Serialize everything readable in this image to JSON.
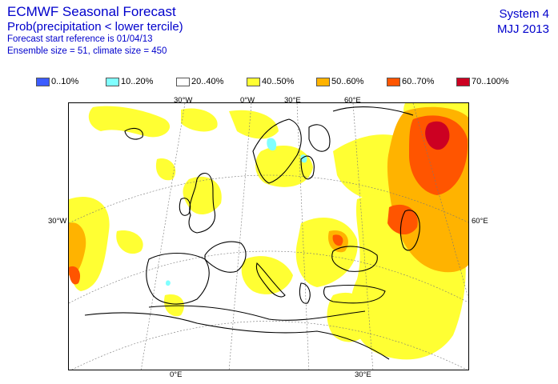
{
  "header": {
    "title": "ECMWF Seasonal Forecast",
    "subtitle": "Prob(precipitation < lower tercile)",
    "start_ref": "Forecast start reference is 01/04/13",
    "ensemble": "Ensemble size = 51, climate size = 450",
    "system": "System 4",
    "season": "MJJ 2013"
  },
  "legend": [
    {
      "label": "0..10%",
      "color": "#3c5cff"
    },
    {
      "label": "10..20%",
      "color": "#80ffff"
    },
    {
      "label": "20..40%",
      "color": "#ffffff"
    },
    {
      "label": "40..50%",
      "color": "#ffff33"
    },
    {
      "label": "50..60%",
      "color": "#ffb300"
    },
    {
      "label": "60..70%",
      "color": "#ff5500"
    },
    {
      "label": "70..100%",
      "color": "#cc0022"
    }
  ],
  "axes": {
    "top": [
      "30°W",
      "0°W",
      "30°E",
      "60°E"
    ],
    "left": "30°W",
    "right": "60°E",
    "bottom": [
      "0°E",
      "30°E"
    ]
  }
}
